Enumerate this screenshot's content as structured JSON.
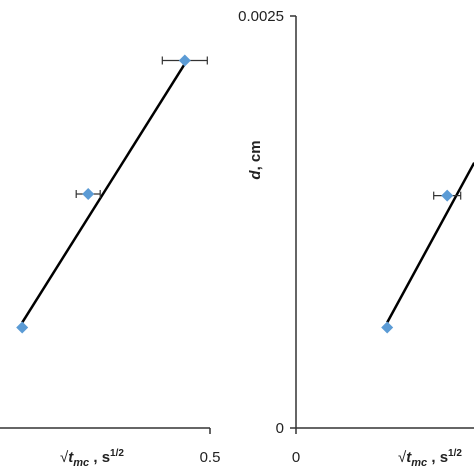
{
  "chart_data": [
    {
      "type": "scatter",
      "x_label": {
        "root": "√",
        "var": "t",
        "sub": "mc",
        "unit": " , s",
        "sup": "1/2"
      },
      "xlim": [
        0,
        0.5
      ],
      "xticks": [
        0.5
      ],
      "ylim": [
        0,
        0.0025
      ],
      "yticks": [],
      "series": [
        {
          "color": "#5b9bd5",
          "x": [
            0.187,
            0.297,
            0.458
          ],
          "values": [
            0.00061,
            0.00142,
            0.00223
          ],
          "xerr": [
            null,
            0.02,
            0.0375
          ]
        }
      ],
      "fit": {
        "color": "#000000",
        "x": [
          0.187,
          0.458
        ],
        "values": [
          0.00064,
          0.00221
        ]
      }
    },
    {
      "type": "scatter",
      "y_label": {
        "var": "d",
        "unit": ", cm"
      },
      "x_label": {
        "root": "√",
        "var": "t",
        "sub": "mc",
        "unit": " , s",
        "sup": "1/2"
      },
      "xlim": [
        0,
        0.5
      ],
      "xticks": [
        0
      ],
      "ylim": [
        0,
        0.0025
      ],
      "yticks": [
        0,
        0.0025
      ],
      "series": [
        {
          "color": "#5b9bd5",
          "x": [
            0.152,
            0.252
          ],
          "values": [
            0.00061,
            0.00141
          ],
          "xerr": [
            null,
            0.0225
          ]
        }
      ],
      "fit": {
        "color": "#000000",
        "x": [
          0.152,
          0.297
        ],
        "values": [
          0.00064,
          0.00161
        ]
      }
    }
  ]
}
